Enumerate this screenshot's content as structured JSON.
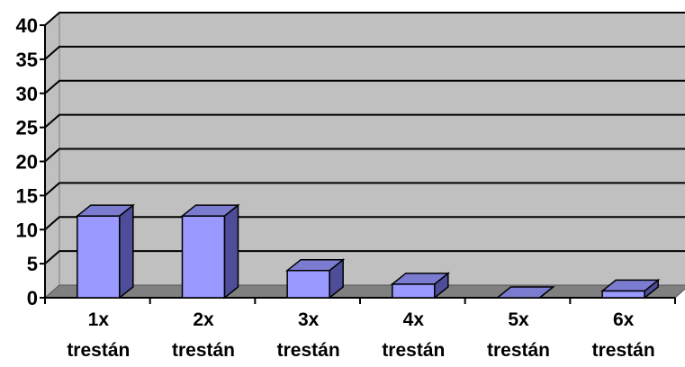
{
  "chart_data": {
    "type": "bar",
    "style": "3d-column",
    "categories": [
      [
        "1x",
        "trestán"
      ],
      [
        "2x",
        "trestán"
      ],
      [
        "3x",
        "trestán"
      ],
      [
        "4x",
        "trestán"
      ],
      [
        "5x",
        "trestán"
      ],
      [
        "6x",
        "trestán"
      ]
    ],
    "values": [
      12,
      12,
      4,
      2,
      0,
      1
    ],
    "title": "",
    "xlabel": "",
    "ylabel": "",
    "ylim": [
      0,
      40
    ],
    "yticks": [
      "0",
      "5",
      "10",
      "15",
      "20",
      "25",
      "30",
      "35",
      "40"
    ],
    "grid": true,
    "legend": "none",
    "colors": {
      "bar_front": "#9999ff",
      "bar_side": "#4d4d99",
      "bar_top": "#7b7bd0",
      "wall": "#c0c0c0",
      "floor": "#808080",
      "gridline": "#000000"
    }
  }
}
